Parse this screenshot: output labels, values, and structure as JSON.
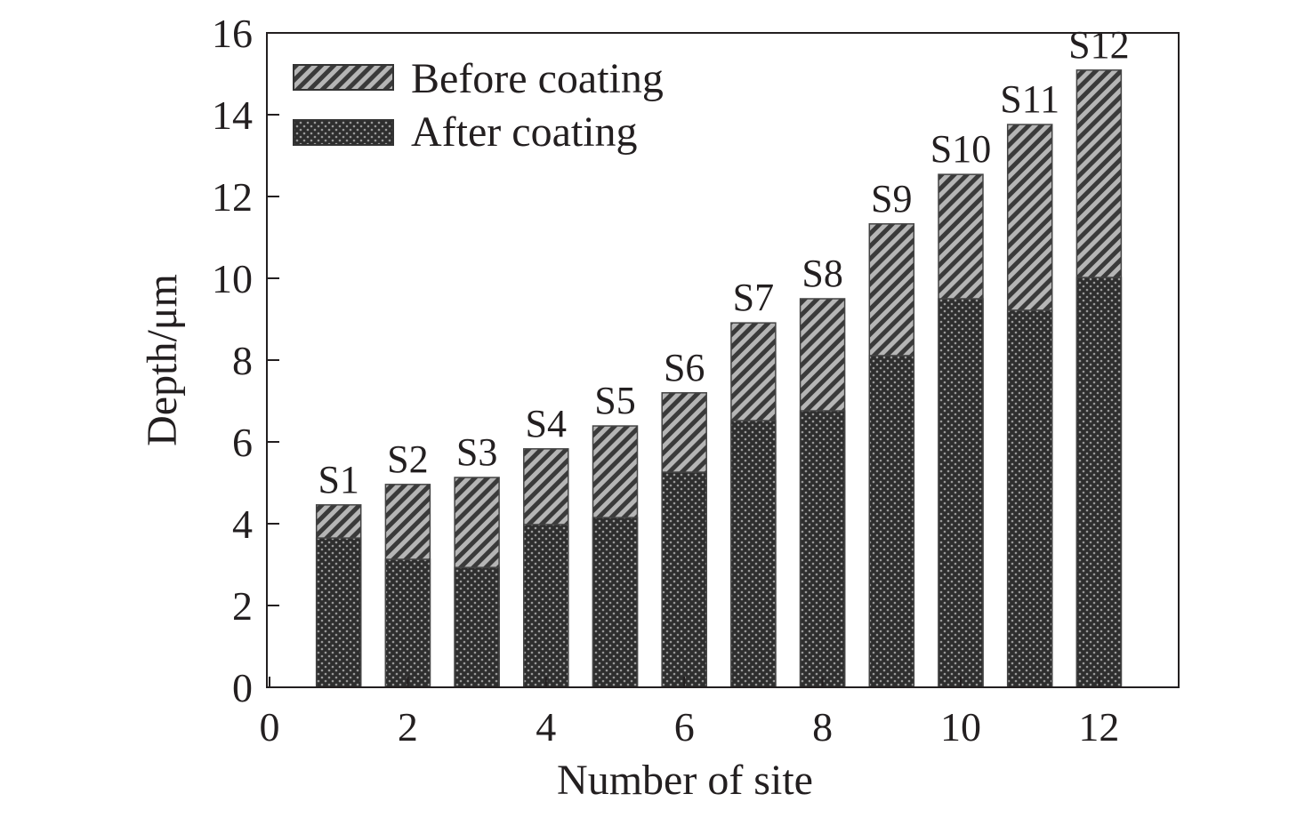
{
  "chart_data": {
    "type": "bar",
    "title": "",
    "xlabel": "Number of site",
    "ylabel": "Depth/μm",
    "xlim": [
      0,
      13.1
    ],
    "ylim": [
      0,
      16
    ],
    "xticks": [
      0,
      2,
      4,
      6,
      8,
      10,
      12
    ],
    "yticks": [
      0,
      2,
      4,
      6,
      8,
      10,
      12,
      14,
      16
    ],
    "x": [
      1,
      2,
      3,
      4,
      5,
      6,
      7,
      8,
      9,
      10,
      11,
      12
    ],
    "bar_labels": [
      "S1",
      "S2",
      "S3",
      "S4",
      "S5",
      "S6",
      "S7",
      "S8",
      "S9",
      "S10",
      "S11",
      "S12"
    ],
    "legend_position": "top-left",
    "grid": false,
    "series": [
      {
        "name": "Before coating",
        "pattern": "diagonal-hatch",
        "values": [
          4.46,
          4.96,
          5.13,
          5.83,
          6.39,
          7.2,
          8.91,
          9.5,
          11.33,
          12.54,
          13.76,
          15.09
        ]
      },
      {
        "name": "After coating",
        "pattern": "dots",
        "values": [
          3.65,
          3.13,
          2.93,
          3.98,
          4.15,
          5.26,
          6.52,
          6.76,
          8.11,
          9.5,
          9.22,
          10.02
        ]
      }
    ]
  }
}
